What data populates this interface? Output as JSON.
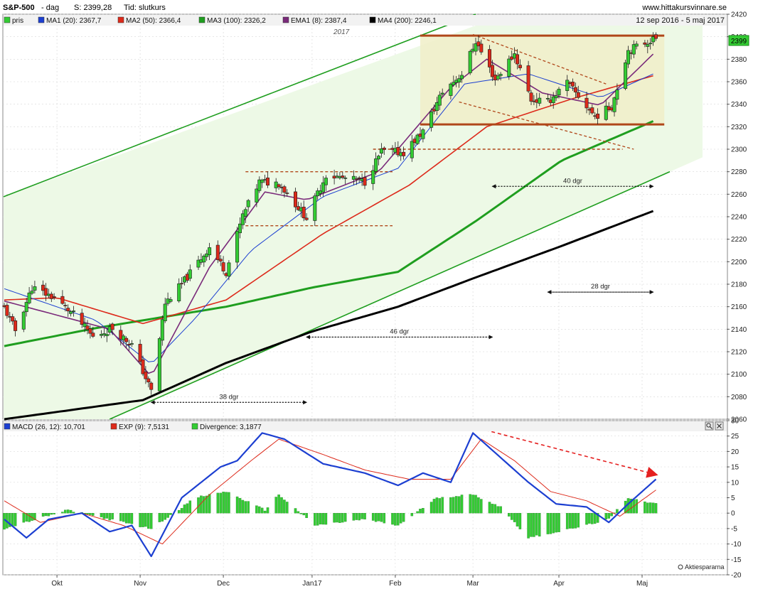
{
  "header": {
    "symbol": "S&P-500",
    "period_label": "- dag",
    "close_label": "S: 2399,28",
    "type_label": "Tid: slutkurs",
    "site": "www.hittakursvinnare.se",
    "date_range": "12 sep 2016 - 5 maj 2017",
    "year_marker": "2017"
  },
  "price_legend": [
    {
      "label": "pris",
      "color": "#33cc33"
    },
    {
      "label": "MA1 (20): 2367,7",
      "color": "#1c3fd1"
    },
    {
      "label": "MA2 (50): 2366,4",
      "color": "#dd2a1b"
    },
    {
      "label": "MA3 (100): 2326,2",
      "color": "#1f9e1f"
    },
    {
      "label": "EMA1 (8): 2387,4",
      "color": "#7a2a7a"
    },
    {
      "label": "MA4 (200): 2246,1",
      "color": "#000000"
    }
  ],
  "macd_legend": [
    {
      "label": "MACD (26, 12): 10,701",
      "color": "#1c3fd1"
    },
    {
      "label": "EXP (9): 7,5131",
      "color": "#dd2a1b"
    },
    {
      "label": "Divergence: 3,1877",
      "color": "#33cc33"
    }
  ],
  "price_badge": "2399",
  "footer_logo": "Aktiespararna",
  "annotations": [
    "38 dgr",
    "46 dgr",
    "40 dgr",
    "28 dgr"
  ],
  "colors": {
    "up": "#33cc33",
    "down": "#dd2a1b",
    "ma20": "#1c3fd1",
    "ma50": "#dd2a1b",
    "ma100": "#1f9e1f",
    "ema8": "#7a2a7a",
    "ma200": "#000000",
    "channel": "#1f9e1f",
    "dashed": "#b0471a"
  },
  "chart_data": [
    {
      "type": "candlestick",
      "title": "S&P-500",
      "x_ticks": [
        "Okt",
        "Nov",
        "Dec",
        "Jan17",
        "Feb",
        "Mar",
        "Apr",
        "Maj"
      ],
      "x_tick_days": [
        19,
        49,
        79,
        111,
        141,
        169,
        200,
        230
      ],
      "ylim": [
        2060,
        2420
      ],
      "y_ticks": [
        2060,
        2080,
        2100,
        2120,
        2140,
        2160,
        2180,
        2200,
        2220,
        2240,
        2260,
        2280,
        2300,
        2320,
        2340,
        2360,
        2380,
        2400,
        2420
      ],
      "x_start_date": "2016-09-12",
      "x_end_date": "2017-05-05",
      "ohlc_anchor_closes": [
        [
          "2016-09-12",
          2159
        ],
        [
          "2016-09-16",
          2139
        ],
        [
          "2016-09-22",
          2177
        ],
        [
          "2016-09-30",
          2168
        ],
        [
          "2016-10-07",
          2153
        ],
        [
          "2016-10-14",
          2133
        ],
        [
          "2016-10-21",
          2141
        ],
        [
          "2016-10-28",
          2126
        ],
        [
          "2016-11-04",
          2085
        ],
        [
          "2016-11-09",
          2163
        ],
        [
          "2016-11-15",
          2180
        ],
        [
          "2016-11-25",
          2213
        ],
        [
          "2016-12-01",
          2191
        ],
        [
          "2016-12-07",
          2241
        ],
        [
          "2016-12-13",
          2271
        ],
        [
          "2016-12-20",
          2270
        ],
        [
          "2016-12-30",
          2239
        ],
        [
          "2017-01-06",
          2277
        ],
        [
          "2017-01-13",
          2274
        ],
        [
          "2017-01-20",
          2271
        ],
        [
          "2017-01-26",
          2298
        ],
        [
          "2017-02-03",
          2297
        ],
        [
          "2017-02-10",
          2316
        ],
        [
          "2017-02-17",
          2351
        ],
        [
          "2017-02-24",
          2367
        ],
        [
          "2017-03-01",
          2396
        ],
        [
          "2017-03-08",
          2362
        ],
        [
          "2017-03-15",
          2385
        ],
        [
          "2017-03-21",
          2344
        ],
        [
          "2017-03-27",
          2342
        ],
        [
          "2017-04-03",
          2359
        ],
        [
          "2017-04-13",
          2329
        ],
        [
          "2017-04-19",
          2338
        ],
        [
          "2017-04-25",
          2388
        ],
        [
          "2017-05-05",
          2399
        ]
      ],
      "moving_averages": {
        "MA1 (20)": [
          [
            "2016-09-12",
            2176
          ],
          [
            "2016-10-15",
            2148
          ],
          [
            "2016-11-04",
            2109
          ],
          [
            "2016-11-20",
            2150
          ],
          [
            "2016-12-10",
            2210
          ],
          [
            "2017-01-05",
            2258
          ],
          [
            "2017-02-01",
            2283
          ],
          [
            "2017-02-25",
            2358
          ],
          [
            "2017-03-20",
            2367
          ],
          [
            "2017-04-15",
            2346
          ],
          [
            "2017-05-05",
            2368
          ]
        ],
        "MA2 (50)": [
          [
            "2016-09-12",
            2166
          ],
          [
            "2016-10-01",
            2168
          ],
          [
            "2016-11-01",
            2145
          ],
          [
            "2016-12-01",
            2166
          ],
          [
            "2017-01-05",
            2225
          ],
          [
            "2017-02-05",
            2268
          ],
          [
            "2017-03-05",
            2320
          ],
          [
            "2017-04-05",
            2345
          ],
          [
            "2017-05-05",
            2366
          ]
        ],
        "MA3 (100)": [
          [
            "2016-09-12",
            2125
          ],
          [
            "2016-10-15",
            2141
          ],
          [
            "2016-12-01",
            2160
          ],
          [
            "2017-01-01",
            2177
          ],
          [
            "2017-02-01",
            2191
          ],
          [
            "2017-03-01",
            2236
          ],
          [
            "2017-04-01",
            2290
          ],
          [
            "2017-05-05",
            2326
          ]
        ],
        "EMA1 (8)": [
          [
            "2016-09-12",
            2165
          ],
          [
            "2016-10-20",
            2140
          ],
          [
            "2016-11-04",
            2098
          ],
          [
            "2016-11-25",
            2195
          ],
          [
            "2016-12-15",
            2262
          ],
          [
            "2016-12-30",
            2255
          ],
          [
            "2017-01-25",
            2280
          ],
          [
            "2017-02-20",
            2355
          ],
          [
            "2017-03-05",
            2380
          ],
          [
            "2017-03-25",
            2350
          ],
          [
            "2017-04-15",
            2339
          ],
          [
            "2017-05-05",
            2387
          ]
        ],
        "MA4 (200)": [
          [
            "2016-09-12",
            2060
          ],
          [
            "2016-11-01",
            2077
          ],
          [
            "2016-12-01",
            2110
          ],
          [
            "2017-01-01",
            2138
          ],
          [
            "2017-02-01",
            2160
          ],
          [
            "2017-03-01",
            2186
          ],
          [
            "2017-04-01",
            2214
          ],
          [
            "2017-05-05",
            2246
          ]
        ]
      },
      "channel_lines": [
        {
          "from": [
            "2016-09-12",
            2258
          ],
          "to": [
            "2017-03-01",
            2420
          ]
        },
        {
          "from": [
            "2016-10-20",
            2060
          ],
          "to": [
            "2017-05-10",
            2280
          ]
        }
      ],
      "horizontal_levels": [
        2401,
        2322,
        2300,
        2280,
        2232
      ],
      "day_count_annotations": [
        {
          "label": "38 dgr",
          "from": "2016-11-04",
          "to": "2016-12-30",
          "y": 2075
        },
        {
          "label": "46 dgr",
          "from": "2016-12-30",
          "to": "2017-03-07",
          "y": 2133
        },
        {
          "label": "40 dgr",
          "from": "2017-03-07",
          "to": "2017-05-04",
          "y": 2267
        },
        {
          "label": "28 dgr",
          "from": "2017-03-27",
          "to": "2017-05-04",
          "y": 2173
        }
      ]
    },
    {
      "type": "line",
      "title": "MACD (26, 12)",
      "ylim": [
        -20,
        30
      ],
      "y_ticks": [
        -20,
        -15,
        -10,
        -5,
        0,
        5,
        10,
        15,
        20,
        25,
        30
      ],
      "series": [
        {
          "name": "MACD (26, 12)",
          "points": [
            [
              "2016-09-12",
              -2
            ],
            [
              "2016-09-20",
              -8
            ],
            [
              "2016-09-28",
              -2
            ],
            [
              "2016-10-10",
              0
            ],
            [
              "2016-10-20",
              -6
            ],
            [
              "2016-10-28",
              -4
            ],
            [
              "2016-11-04",
              -14
            ],
            [
              "2016-11-15",
              5
            ],
            [
              "2016-11-29",
              15
            ],
            [
              "2016-12-05",
              17
            ],
            [
              "2016-12-14",
              26
            ],
            [
              "2016-12-22",
              24
            ],
            [
              "2017-01-05",
              16
            ],
            [
              "2017-01-20",
              13
            ],
            [
              "2017-02-01",
              9
            ],
            [
              "2017-02-10",
              13
            ],
            [
              "2017-02-20",
              10
            ],
            [
              "2017-02-28",
              26
            ],
            [
              "2017-03-10",
              18
            ],
            [
              "2017-03-20",
              10
            ],
            [
              "2017-03-30",
              3
            ],
            [
              "2017-04-10",
              2
            ],
            [
              "2017-04-18",
              -3
            ],
            [
              "2017-04-25",
              3
            ],
            [
              "2017-05-05",
              11
            ]
          ]
        },
        {
          "name": "EXP (9)",
          "points": [
            [
              "2016-09-12",
              4
            ],
            [
              "2016-09-25",
              -3
            ],
            [
              "2016-10-10",
              0
            ],
            [
              "2016-10-25",
              -4
            ],
            [
              "2016-11-08",
              -10
            ],
            [
              "2016-11-25",
              6
            ],
            [
              "2016-12-10",
              17
            ],
            [
              "2016-12-20",
              24
            ],
            [
              "2017-01-05",
              19
            ],
            [
              "2017-01-20",
              14
            ],
            [
              "2017-02-05",
              11
            ],
            [
              "2017-02-20",
              11
            ],
            [
              "2017-03-03",
              24
            ],
            [
              "2017-03-15",
              17
            ],
            [
              "2017-03-28",
              7
            ],
            [
              "2017-04-10",
              4
            ],
            [
              "2017-04-22",
              -1
            ],
            [
              "2017-05-05",
              7.5
            ]
          ]
        },
        {
          "name": "Divergence",
          "style": "histogram",
          "points": [
            [
              "2016-09-12",
              -5
            ],
            [
              "2016-10-05",
              1
            ],
            [
              "2016-10-20",
              -2
            ],
            [
              "2016-11-04",
              -5
            ],
            [
              "2016-11-20",
              5
            ],
            [
              "2016-12-01",
              7
            ],
            [
              "2016-12-15",
              1
            ],
            [
              "2016-12-20",
              6
            ],
            [
              "2017-01-02",
              -4
            ],
            [
              "2017-01-20",
              -2
            ],
            [
              "2017-02-01",
              -4
            ],
            [
              "2017-02-15",
              5
            ],
            [
              "2017-02-28",
              6
            ],
            [
              "2017-03-10",
              2
            ],
            [
              "2017-03-20",
              -8
            ],
            [
              "2017-04-05",
              -5
            ],
            [
              "2017-04-18",
              -2
            ],
            [
              "2017-04-25",
              5
            ],
            [
              "2017-05-05",
              3
            ]
          ]
        }
      ]
    }
  ],
  "axes": {
    "price_y_ticks": [
      "2420",
      "2400",
      "2380",
      "2360",
      "2340",
      "2320",
      "2300",
      "2280",
      "2260",
      "2240",
      "2220",
      "2200",
      "2180",
      "2160",
      "2140",
      "2120",
      "2100",
      "2080",
      "2060"
    ],
    "macd_y_ticks": [
      "30",
      "25",
      "20",
      "15",
      "10",
      "5",
      "0",
      "-5",
      "-10",
      "-15",
      "-20"
    ],
    "x_ticks": [
      "Okt",
      "Nov",
      "Dec",
      "Jan17",
      "Feb",
      "Mar",
      "Apr",
      "Maj"
    ]
  }
}
